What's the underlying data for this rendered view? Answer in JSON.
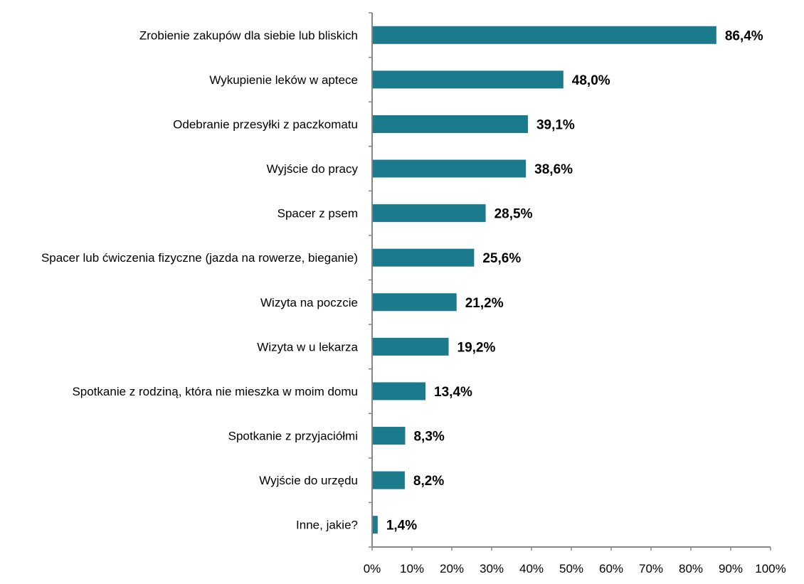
{
  "chart_data": {
    "type": "bar",
    "orientation": "horizontal",
    "title": "",
    "xlabel": "",
    "ylabel": "",
    "xlim": [
      0,
      100
    ],
    "grid": false,
    "bar_color": "#1B7A8C",
    "categories": [
      "Zrobienie zakupów dla siebie lub bliskich",
      "Wykupienie leków w aptece",
      "Odebranie przesyłki z paczkomatu",
      "Wyjście do pracy",
      "Spacer z psem",
      "Spacer lub ćwiczenia fizyczne (jazda na rowerze, bieganie)",
      "Wizyta na poczcie",
      "Wizyta w u lekarza",
      "Spotkanie z rodziną, która nie mieszka w moim domu",
      "Spotkanie z przyjaciółmi",
      "Wyjście do urzędu",
      "Inne, jakie?"
    ],
    "values": [
      86.4,
      48.0,
      39.1,
      38.6,
      28.5,
      25.6,
      21.2,
      19.2,
      13.4,
      8.3,
      8.2,
      1.4
    ],
    "data_labels": [
      "86,4%",
      "48,0%",
      "39,1%",
      "38,6%",
      "28,5%",
      "25,6%",
      "21,2%",
      "19,2%",
      "13,4%",
      "8,3%",
      "8,2%",
      "1,4%"
    ],
    "x_ticks": [
      0,
      10,
      20,
      30,
      40,
      50,
      60,
      70,
      80,
      90,
      100
    ],
    "x_tick_labels": [
      "0%",
      "10%",
      "20%",
      "30%",
      "40%",
      "50%",
      "60%",
      "70%",
      "80%",
      "90%",
      "100%"
    ]
  }
}
